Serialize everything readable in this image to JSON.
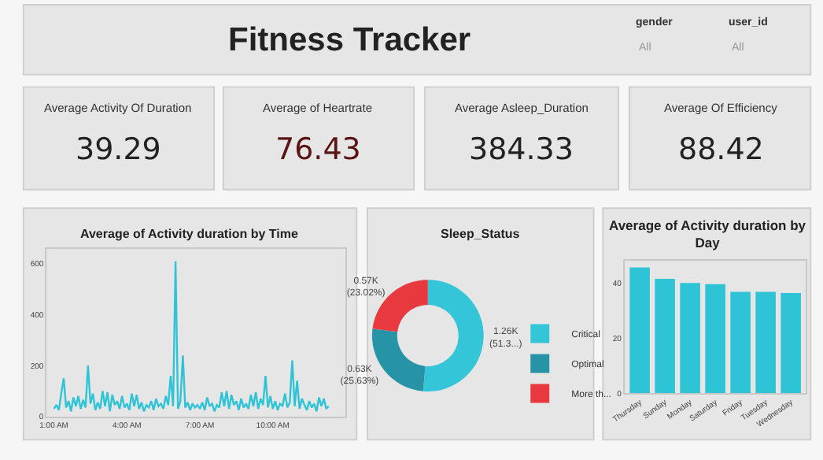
{
  "chart_data": [
    {
      "type": "other",
      "title": "Fitness Tracker",
      "annotations": [
        "gender",
        "All",
        "user_id",
        "All"
      ]
    },
    {
      "type": "other",
      "title": "Average Activity Of Duration",
      "annotations": [
        "39.29"
      ]
    },
    {
      "type": "other",
      "title": "Average of Heartrate",
      "annotations": [
        {
          "text": "76.43"
        }
      ],
      "color": "#5a1414"
    },
    {
      "type": "other",
      "title": "Average Asleep_Duration",
      "annotations": [
        "384.33"
      ]
    },
    {
      "type": "other",
      "title": "Average Of Efficiency",
      "annotations": [
        "88.42"
      ]
    },
    {
      "type": "line",
      "title": "Average of Activity duration by Time",
      "color": "#2ec4d6",
      "xlim": [
        0.7,
        13.0
      ],
      "ylim": [
        0,
        660
      ],
      "yticks": [
        0,
        200,
        400,
        600
      ],
      "xticks": [
        {
          "value": 1,
          "label": "1:00 AM"
        },
        {
          "value": 4,
          "label": "4:00 AM"
        },
        {
          "value": 7,
          "label": "7:00 AM"
        },
        {
          "value": 10,
          "label": "10:00 AM"
        }
      ],
      "x": [
        1.0,
        1.1,
        1.2,
        1.3,
        1.4,
        1.5,
        1.6,
        1.7,
        1.8,
        1.9,
        2.0,
        2.1,
        2.2,
        2.3,
        2.4,
        2.5,
        2.6,
        2.7,
        2.8,
        2.9,
        3.0,
        3.1,
        3.2,
        3.3,
        3.4,
        3.5,
        3.6,
        3.7,
        3.8,
        3.9,
        4.0,
        4.1,
        4.2,
        4.3,
        4.4,
        4.5,
        4.6,
        4.7,
        4.8,
        4.9,
        5.0,
        5.1,
        5.2,
        5.3,
        5.4,
        5.5,
        5.6,
        5.7,
        5.8,
        5.9,
        6.0,
        6.1,
        6.2,
        6.3,
        6.4,
        6.5,
        6.6,
        6.7,
        6.8,
        6.9,
        7.0,
        7.1,
        7.2,
        7.3,
        7.4,
        7.5,
        7.6,
        7.7,
        7.8,
        7.9,
        8.0,
        8.1,
        8.2,
        8.3,
        8.4,
        8.5,
        8.6,
        8.7,
        8.8,
        8.9,
        9.0,
        9.1,
        9.2,
        9.3,
        9.4,
        9.5,
        9.6,
        9.7,
        9.8,
        9.9,
        10.0,
        10.1,
        10.2,
        10.3,
        10.4,
        10.5,
        10.6,
        10.7,
        10.8,
        10.9,
        11.0,
        11.1,
        11.2,
        11.3,
        11.4,
        11.5,
        11.6,
        11.7,
        11.8,
        11.9,
        12.0,
        12.1,
        12.2,
        12.3
      ],
      "values": [
        30,
        45,
        25,
        90,
        150,
        35,
        60,
        20,
        75,
        40,
        80,
        30,
        65,
        35,
        200,
        50,
        90,
        25,
        55,
        30,
        100,
        40,
        95,
        20,
        85,
        45,
        60,
        30,
        80,
        35,
        50,
        25,
        90,
        40,
        85,
        30,
        55,
        20,
        45,
        35,
        60,
        25,
        70,
        40,
        50,
        30,
        80,
        45,
        160,
        40,
        610,
        30,
        60,
        240,
        35,
        55,
        25,
        50,
        35,
        45,
        30,
        55,
        25,
        75,
        40,
        50,
        20,
        45,
        35,
        95,
        40,
        100,
        30,
        85,
        45,
        60,
        25,
        70,
        35,
        50,
        30,
        85,
        40,
        95,
        30,
        70,
        45,
        160,
        35,
        80,
        30,
        60,
        25,
        50,
        40,
        90,
        35,
        55,
        220,
        40,
        140,
        30,
        70,
        45,
        25,
        60,
        35,
        50,
        20,
        75,
        40,
        70,
        30,
        40
      ]
    },
    {
      "type": "donut",
      "title": "Sleep_Status",
      "categories": [
        "Critical",
        "Optimal",
        "More th..."
      ],
      "values": [
        51.35,
        25.63,
        23.02
      ],
      "colors": [
        "#35c5d8",
        "#2694a6",
        "#e8393f"
      ],
      "value_labels": [
        "1.26K\n(51.3...)",
        "0.63K\n(25.63%)",
        "0.57K\n(23.02%)"
      ],
      "legend": "right"
    },
    {
      "type": "bar",
      "title": "Average of Activity duration by Day",
      "categories": [
        "Thursday",
        "Sunday",
        "Monday",
        "Saturday",
        "Friday",
        "Tuesday",
        "Wednesday"
      ],
      "values": [
        45.7,
        41.5,
        40.0,
        39.6,
        36.8,
        36.8,
        36.4
      ],
      "color": "#2ec4d6",
      "ylim": [
        0,
        48
      ],
      "yticks": [
        0,
        20,
        40
      ]
    }
  ]
}
